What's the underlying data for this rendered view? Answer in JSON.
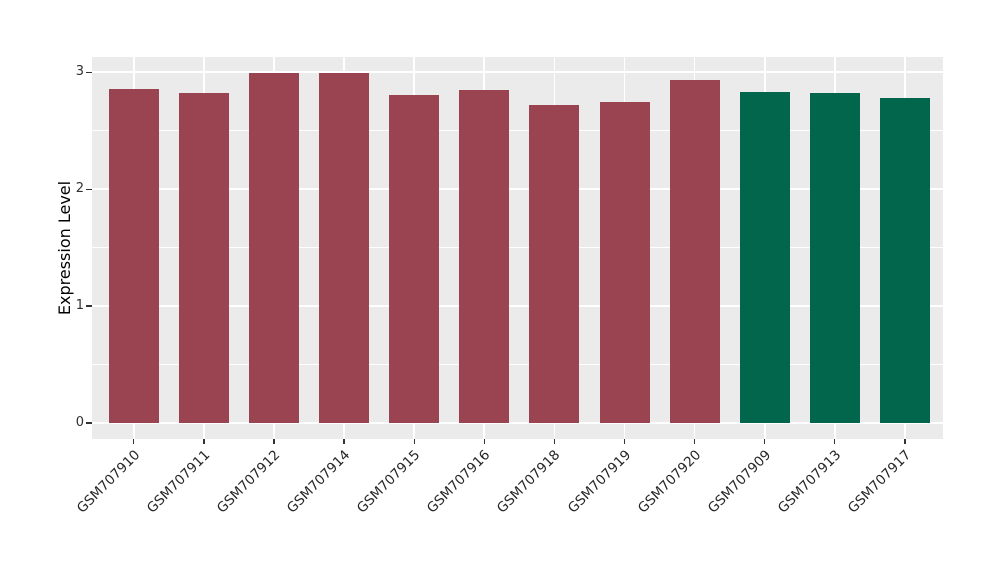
{
  "figure": {
    "background": "#FFFFFF"
  },
  "chart_data": {
    "type": "bar",
    "ylabel": "Expression Level",
    "categories": [
      "GSM707910",
      "GSM707911",
      "GSM707912",
      "GSM707914",
      "GSM707915",
      "GSM707916",
      "GSM707918",
      "GSM707919",
      "GSM707920",
      "GSM707909",
      "GSM707913",
      "GSM707917"
    ],
    "values": [
      2.86,
      2.82,
      2.99,
      2.99,
      2.81,
      2.85,
      2.72,
      2.75,
      2.93,
      2.83,
      2.82,
      2.78
    ],
    "bar_colors": [
      "#9A4452",
      "#9A4452",
      "#9A4452",
      "#9A4452",
      "#9A4452",
      "#9A4452",
      "#9A4452",
      "#9A4452",
      "#9A4452",
      "#01664B",
      "#01664B",
      "#01664B"
    ],
    "ylim": [
      0,
      3
    ],
    "yticks": [
      0,
      1,
      2,
      3
    ],
    "yticks_minor": [
      0.5,
      1.5,
      2.5
    ],
    "grid": true,
    "legend": "none",
    "style": {
      "panel_background": "#EBEBEB",
      "grid_color": "#FFFFFF",
      "axis_text_color": "#303030",
      "axis_title_color": "#000000",
      "tick_mark_color": "#333333",
      "group1_color": "#9A4452",
      "group2_color": "#01664B"
    }
  }
}
